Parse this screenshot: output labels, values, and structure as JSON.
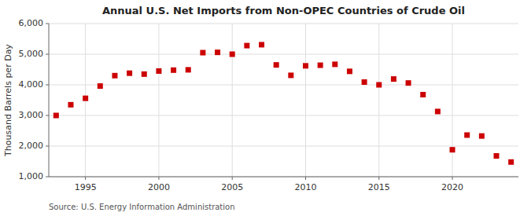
{
  "chart_data": {
    "type": "scatter",
    "title": "Annual U.S. Net Imports from Non-OPEC Countries of Crude Oil",
    "ylabel": "Thousand Barrels per Day",
    "annotations": [
      "Source: U.S. Energy Information Administration"
    ],
    "color": "#cc0000",
    "marker": "square",
    "grid": true,
    "xlim": [
      1992.5,
      2024.5
    ],
    "xticks": [
      1995,
      2000,
      2005,
      2010,
      2015,
      2020
    ],
    "ylim": [
      1000,
      6000
    ],
    "yticks": [
      {
        "value": 1000,
        "label": "1,000"
      },
      {
        "value": 2000,
        "label": "2,000"
      },
      {
        "value": 3000,
        "label": "3,000"
      },
      {
        "value": 4000,
        "label": "4,000"
      },
      {
        "value": 5000,
        "label": "5,000"
      },
      {
        "value": 6000,
        "label": "6,000"
      }
    ],
    "x": [
      1993,
      1994,
      1995,
      1996,
      1997,
      1998,
      1999,
      2000,
      2001,
      2002,
      2003,
      2004,
      2005,
      2006,
      2007,
      2008,
      2009,
      2010,
      2011,
      2012,
      2013,
      2014,
      2015,
      2016,
      2017,
      2018,
      2019,
      2020,
      2021,
      2022,
      2023,
      2024
    ],
    "values": [
      3000,
      3350,
      3560,
      3960,
      4300,
      4380,
      4350,
      4450,
      4480,
      4490,
      5050,
      5060,
      5000,
      5280,
      5310,
      4650,
      4310,
      4620,
      4640,
      4670,
      4440,
      4090,
      4000,
      4190,
      4060,
      3680,
      3130,
      1880,
      2360,
      2330,
      1680,
      1480
    ]
  }
}
